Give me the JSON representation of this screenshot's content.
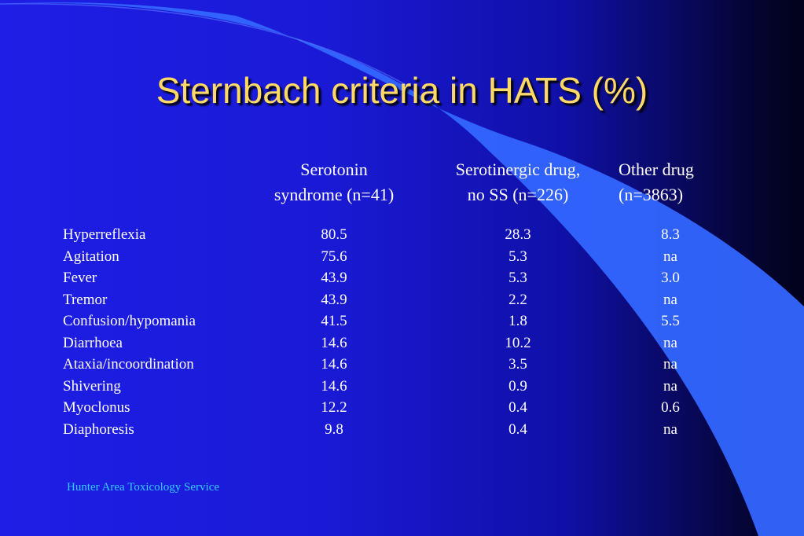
{
  "title": "Sternbach criteria in HATS (%)",
  "headers": [
    {
      "line1": "Serotonin",
      "line2": "syndrome (n=41)"
    },
    {
      "line1": "Serotinergic drug,",
      "line2": "no SS (n=226)"
    },
    {
      "line1": "Other drug",
      "line2": "(n=3863)"
    }
  ],
  "rows": [
    {
      "criterion": "Hyperreflexia",
      "ss": "80.5",
      "sd": "28.3",
      "od": "8.3"
    },
    {
      "criterion": "Agitation",
      "ss": "75.6",
      "sd": "5.3",
      "od": "na"
    },
    {
      "criterion": "Fever",
      "ss": "43.9",
      "sd": "5.3",
      "od": "3.0"
    },
    {
      "criterion": "Tremor",
      "ss": "43.9",
      "sd": "2.2",
      "od": "na"
    },
    {
      "criterion": "Confusion/hypomania",
      "ss": "41.5",
      "sd": "1.8",
      "od": "5.5"
    },
    {
      "criterion": "Diarrhoea",
      "ss": "14.6",
      "sd": "10.2",
      "od": "na"
    },
    {
      "criterion": "Ataxia/incoordination",
      "ss": "14.6",
      "sd": "3.5",
      "od": "na"
    },
    {
      "criterion": "Shivering",
      "ss": "14.6",
      "sd": "0.9",
      "od": "na"
    },
    {
      "criterion": "Myoclonus",
      "ss": "12.2",
      "sd": "0.4",
      "od": "0.6"
    },
    {
      "criterion": "Diaphoresis",
      "ss": "9.8",
      "sd": "0.4",
      "od": "na"
    }
  ],
  "footer": "Hunter Area Toxicology Service",
  "colors": {
    "title": "#ffd966",
    "footer": "#33ccff",
    "swoosh": "#3366ff"
  }
}
